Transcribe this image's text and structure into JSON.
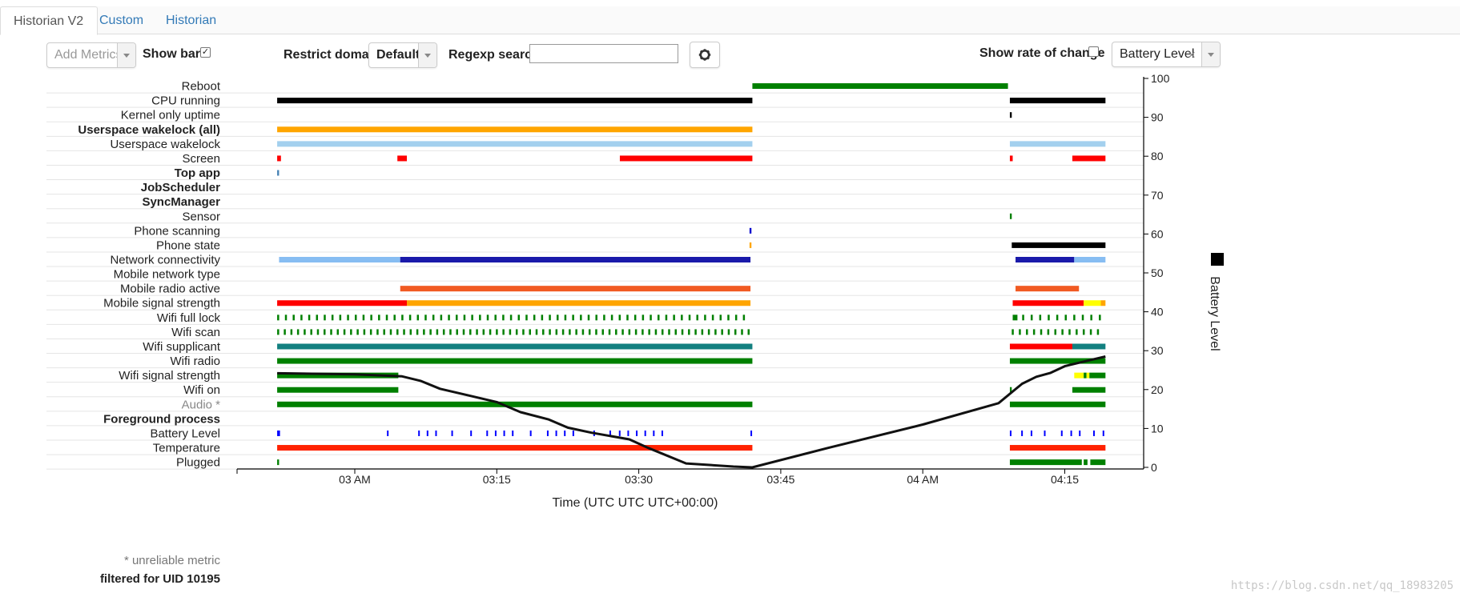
{
  "tabs": [
    {
      "label": "Historian V2",
      "active": true
    },
    {
      "label": "Custom",
      "active": false
    },
    {
      "label": "Historian",
      "active": false
    }
  ],
  "controls": {
    "add_metrics_placeholder": "Add Metrics",
    "show_bars_label": "Show bars",
    "show_bars_checked": true,
    "restrict_domain_label": "Restrict domain",
    "restrict_domain_value": "Default",
    "regexp_label": "Regexp search",
    "regexp_value": "",
    "gear_icon": "gear-icon",
    "show_rate_label": "Show rate of change",
    "show_rate_checked": false,
    "battery_select_value": "Battery Level",
    "battery_select_clear": "×"
  },
  "footer": {
    "unreliable_note": "* unreliable metric",
    "filter_note": "filtered for UID 10195"
  },
  "watermark": "https://blog.csdn.net/qq_18983205",
  "chart_data": {
    "type": "timeline",
    "xlabel": "Time (UTC UTC UTC+00:00)",
    "x_ticks": [
      {
        "label": "03 AM",
        "min": 0
      },
      {
        "label": "03:15",
        "min": 15
      },
      {
        "label": "03:30",
        "min": 30
      },
      {
        "label": "03:45",
        "min": 45
      },
      {
        "label": "04 AM",
        "min": 60
      },
      {
        "label": "04:15",
        "min": 75
      }
    ],
    "x_range_min": [
      -12.5,
      82.5
    ],
    "y_right_label": "Battery Level",
    "y_right_range": [
      0,
      100
    ],
    "y_right_ticks": [
      0,
      10,
      20,
      30,
      40,
      50,
      60,
      70,
      80,
      90,
      100
    ],
    "legend": {
      "color": "#000000",
      "label": "Battery Level"
    },
    "rows": [
      {
        "label": "Reboot",
        "bold": false,
        "gray": false,
        "segs": [
          [
            42,
            69,
            "#008000"
          ]
        ]
      },
      {
        "label": "CPU running",
        "bold": false,
        "gray": false,
        "segs": [
          [
            -8.2,
            42,
            "#000000"
          ],
          [
            69.2,
            79.3,
            "#000000"
          ]
        ]
      },
      {
        "label": "Kernel only uptime",
        "bold": false,
        "gray": false,
        "segs": [
          [
            69.2,
            69.4,
            "#000000"
          ]
        ]
      },
      {
        "label": "Userspace wakelock (all)",
        "bold": true,
        "gray": false,
        "segs": [
          [
            -8.2,
            42,
            "#ffa500"
          ]
        ]
      },
      {
        "label": "Userspace wakelock",
        "bold": false,
        "gray": false,
        "segs": [
          [
            -8.2,
            42,
            "#a3d0ee"
          ],
          [
            69.2,
            79.3,
            "#a3d0ee"
          ]
        ]
      },
      {
        "label": "Screen",
        "bold": false,
        "gray": false,
        "segs": [
          [
            -8.2,
            -7.8,
            "#ff0000"
          ],
          [
            4.5,
            5.5,
            "#ff0000"
          ],
          [
            28,
            42,
            "#ff0000"
          ],
          [
            69.2,
            69.5,
            "#ff0000"
          ],
          [
            75.8,
            79.3,
            "#ff0000"
          ]
        ]
      },
      {
        "label": "Top app",
        "bold": true,
        "gray": false,
        "segs": [
          [
            -8.2,
            -8,
            "#4682b4"
          ]
        ]
      },
      {
        "label": "JobScheduler",
        "bold": true,
        "gray": false,
        "segs": []
      },
      {
        "label": "SyncManager",
        "bold": true,
        "gray": false,
        "segs": []
      },
      {
        "label": "Sensor",
        "bold": false,
        "gray": false,
        "segs": [
          [
            69.2,
            69.4,
            "#008000"
          ]
        ]
      },
      {
        "label": "Phone scanning",
        "bold": false,
        "gray": false,
        "segs": [
          [
            41.7,
            41.9,
            "#0000cd"
          ]
        ]
      },
      {
        "label": "Phone state",
        "bold": false,
        "gray": false,
        "segs": [
          [
            41.7,
            41.9,
            "#ffa500"
          ],
          [
            69.4,
            79.3,
            "#000000"
          ]
        ]
      },
      {
        "label": "Network connectivity",
        "bold": false,
        "gray": false,
        "segs": [
          [
            -8,
            4.8,
            "#87bdf2"
          ],
          [
            4.8,
            41.8,
            "#1a1aaa"
          ],
          [
            69.8,
            76,
            "#1a1aaa"
          ],
          [
            76,
            79.3,
            "#87bdf2"
          ]
        ]
      },
      {
        "label": "Mobile network type",
        "bold": false,
        "gray": false,
        "segs": []
      },
      {
        "label": "Mobile radio active",
        "bold": false,
        "gray": false,
        "segs": [
          [
            4.8,
            41.8,
            "#f15a22"
          ],
          [
            69.8,
            76.5,
            "#f15a22"
          ]
        ]
      },
      {
        "label": "Mobile signal strength",
        "bold": false,
        "gray": false,
        "segs": [
          [
            -8.2,
            5.5,
            "#ff0000"
          ],
          [
            5.5,
            41.8,
            "#ffa500"
          ],
          [
            69.5,
            77,
            "#ff0000"
          ],
          [
            77,
            78.8,
            "#ffff00"
          ],
          [
            78.8,
            79.3,
            "#ffa500"
          ]
        ]
      },
      {
        "label": "Wifi full lock",
        "bold": false,
        "gray": false,
        "ticks": {
          "from": -8.2,
          "to": 41.8,
          "step": 0.82,
          "color": "#008000"
        },
        "segs": [
          [
            69.5,
            70,
            "#008000"
          ]
        ],
        "ticks2": {
          "from": 70.5,
          "to": 79,
          "step": 0.9,
          "color": "#008000"
        }
      },
      {
        "label": "Wifi scan",
        "bold": false,
        "gray": false,
        "ticks": {
          "from": -8.2,
          "to": 41.8,
          "step": 0.7,
          "color": "#008000"
        },
        "segs": [],
        "ticks2": {
          "from": 69.4,
          "to": 79,
          "step": 0.75,
          "color": "#008000"
        }
      },
      {
        "label": "Wifi supplicant",
        "bold": false,
        "gray": false,
        "segs": [
          [
            -8.2,
            42,
            "#138080"
          ],
          [
            69.2,
            75.8,
            "#ff0000"
          ],
          [
            75.8,
            79.3,
            "#138080"
          ]
        ]
      },
      {
        "label": "Wifi radio",
        "bold": false,
        "gray": false,
        "segs": [
          [
            -8.2,
            42,
            "#008000"
          ],
          [
            69.2,
            79.3,
            "#008000"
          ]
        ]
      },
      {
        "label": "Wifi signal strength",
        "bold": false,
        "gray": false,
        "segs": [
          [
            -8.2,
            4.6,
            "#008000"
          ],
          [
            76,
            77,
            "#ffff00"
          ],
          [
            77,
            77.3,
            "#008000"
          ],
          [
            77.3,
            77.6,
            "#ffff00"
          ],
          [
            77.6,
            79.3,
            "#008000"
          ]
        ]
      },
      {
        "label": "Wifi on",
        "bold": false,
        "gray": false,
        "segs": [
          [
            -8.2,
            4.6,
            "#008000"
          ],
          [
            69.2,
            69.4,
            "#008000"
          ],
          [
            75.8,
            79.3,
            "#008000"
          ]
        ]
      },
      {
        "label": "Audio *",
        "bold": false,
        "gray": true,
        "segs": [
          [
            -8.2,
            42,
            "#008000"
          ],
          [
            69.2,
            79.3,
            "#008000"
          ]
        ]
      },
      {
        "label": "Foreground process",
        "bold": true,
        "gray": false,
        "segs": []
      },
      {
        "label": "Battery Level",
        "bold": false,
        "gray": false,
        "segs": [
          [
            -8.2,
            -7.9,
            "#0000ff"
          ]
        ],
        "marks": [
          3.4,
          6.7,
          7.6,
          8.5,
          10.2,
          12.2,
          13.9,
          14.8,
          15.7,
          16.6,
          18.5,
          20.3,
          21.2,
          22.1,
          23.0,
          25.2,
          26.9,
          27.9,
          28.8,
          29.7,
          30.6,
          31.5,
          32.4,
          41.8,
          69.2,
          70.4,
          71.4,
          72.8,
          74.6,
          75.6,
          76.5,
          78.0,
          79.0
        ]
      },
      {
        "label": "Temperature",
        "bold": false,
        "gray": false,
        "segs": [
          [
            -8.2,
            42,
            "#ff2200"
          ],
          [
            69.2,
            79.3,
            "#ff2200"
          ]
        ]
      },
      {
        "label": "Plugged",
        "bold": false,
        "gray": false,
        "segs": [
          [
            -8.2,
            -8,
            "#008000"
          ],
          [
            69.2,
            76.8,
            "#008000"
          ],
          [
            77.0,
            77.4,
            "#008000"
          ],
          [
            77.7,
            79.3,
            "#008000"
          ]
        ]
      }
    ],
    "battery_line": [
      [
        -8.2,
        24.2
      ],
      [
        0,
        23.9
      ],
      [
        5,
        23.4
      ],
      [
        7,
        22.2
      ],
      [
        9,
        20.2
      ],
      [
        12,
        18.5
      ],
      [
        15,
        16.8
      ],
      [
        17.5,
        14.2
      ],
      [
        20.5,
        12.3
      ],
      [
        22.5,
        10.2
      ],
      [
        25,
        8.9
      ],
      [
        29,
        7.2
      ],
      [
        31,
        5.0
      ],
      [
        35,
        1.0
      ],
      [
        40,
        0.2
      ],
      [
        42,
        0.0
      ],
      [
        50,
        5.0
      ],
      [
        60,
        11.0
      ],
      [
        68,
        16.5
      ],
      [
        70.5,
        21.5
      ],
      [
        72,
        23.3
      ],
      [
        73.5,
        24.3
      ],
      [
        75,
        26.0
      ],
      [
        77.5,
        27.5
      ],
      [
        79.3,
        28.5
      ]
    ]
  }
}
